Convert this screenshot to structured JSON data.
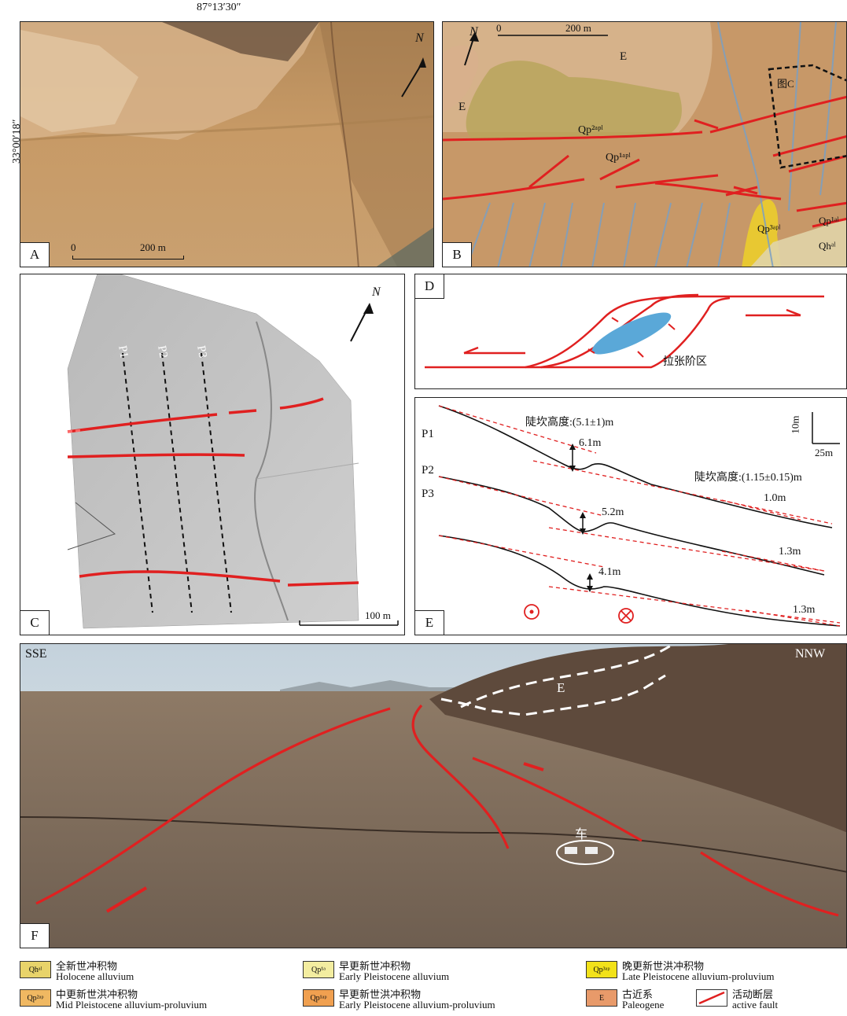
{
  "coords": {
    "top": "87°13′30″",
    "left": "33°00′18″"
  },
  "panelA": {
    "label": "A",
    "scale": "200 m",
    "scale_zero": "0",
    "north": "N"
  },
  "panelB": {
    "label": "B",
    "scale": "200 m",
    "scale_zero": "0",
    "north": "N",
    "units": [
      "E",
      "E",
      "Qp²ᵃᵖˡ",
      "Qp¹ᵃᵖˡ",
      "Qp³ᵃᵖˡ",
      "Qp¹ᵃˡ",
      "Qhᵃˡ"
    ],
    "inset": "图C"
  },
  "panelC": {
    "label": "C",
    "north": "N",
    "profiles": [
      "P1",
      "P2",
      "P3"
    ],
    "scale": "100 m"
  },
  "panelD": {
    "label": "D",
    "caption": "拉张阶区"
  },
  "panelE": {
    "label": "E",
    "profiles": [
      "P1",
      "P2",
      "P3"
    ],
    "scarp1": "陡坎高度:(5.1±1)m",
    "scarp2": "陡坎高度:(1.15±0.15)m",
    "heights_left": [
      "6.1m",
      "5.2m",
      "4.1m"
    ],
    "heights_right": [
      "1.0m",
      "1.3m",
      "1.3m"
    ],
    "scale_v": "10m",
    "scale_h": "25m"
  },
  "panelF": {
    "label": "F",
    "left_dir": "SSE",
    "right_dir": "NNW",
    "unit": "E",
    "car": "车"
  },
  "legend": [
    {
      "code": "Qhᵃˡ",
      "color": "#e8d36a",
      "cn": "全新世冲积物",
      "en": "Holocene alluvium"
    },
    {
      "code": "Qp¹ᵃ",
      "color": "#f3eda0",
      "cn": "早更新世冲积物",
      "en": "Early Pleistocene alluvium"
    },
    {
      "code": "Qp³ᵃᵖ",
      "color": "#f2e21a",
      "cn": "晚更新世洪冲积物",
      "en": "Late Pleistocene alluvium-proluvium"
    },
    {
      "code": "Qp²ᵃᵖ",
      "color": "#f0b862",
      "cn": "中更新世洪冲积物",
      "en": "Mid Pleistocene alluvium-proluvium"
    },
    {
      "code": "Qp¹ᵃᵖ",
      "color": "#f0a050",
      "cn": "早更新世洪冲积物",
      "en": "Early Pleistocene alluvium-proluvium"
    },
    {
      "code": "E",
      "color": "#e89a6a",
      "cn": "古近系",
      "en": "Paleogene"
    },
    {
      "code": "",
      "color": "#ffffff",
      "cn": "活动断层",
      "en": "active fault"
    }
  ]
}
